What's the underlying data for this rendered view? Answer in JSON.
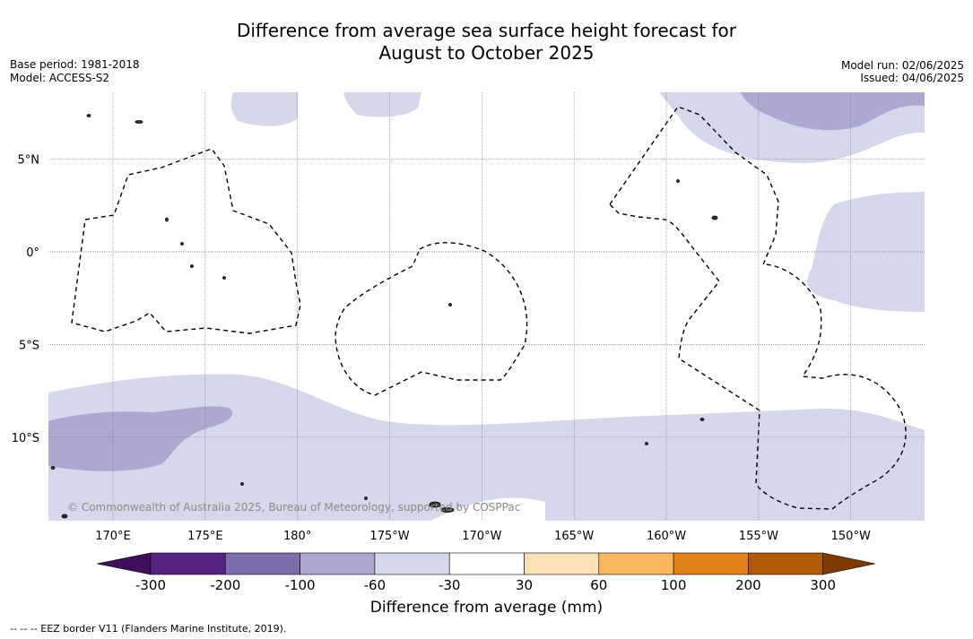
{
  "title_line1": "Difference from average sea surface height forecast for",
  "title_line2": "August to October 2025",
  "meta": {
    "base_period": "Base period: 1981-2018",
    "model": "Model: ACCESS-S2",
    "model_run": "Model run: 02/06/2025",
    "issued": "Issued: 04/06/2025"
  },
  "map": {
    "lon_ticks": [
      {
        "lon": 170,
        "label": "170°E"
      },
      {
        "lon": 175,
        "label": "175°E"
      },
      {
        "lon": 180,
        "label": "180°"
      },
      {
        "lon": 185,
        "label": "175°W"
      },
      {
        "lon": 190,
        "label": "170°W"
      },
      {
        "lon": 195,
        "label": "165°W"
      },
      {
        "lon": 200,
        "label": "160°W"
      },
      {
        "lon": 205,
        "label": "155°W"
      },
      {
        "lon": 210,
        "label": "150°W"
      }
    ],
    "lat_ticks": [
      {
        "lat": 5,
        "label": "5°N"
      },
      {
        "lat": 0,
        "label": "0°"
      },
      {
        "lat": -5,
        "label": "5°S"
      },
      {
        "lat": -10,
        "label": "10°S"
      }
    ],
    "lon_range": [
      166.5,
      214.0
    ],
    "lat_range": [
      -14.5,
      8.6
    ],
    "copyright": "© Commonwealth of Australia 2025, Bureau of Meteorology, supported by COSPPac"
  },
  "legend": {
    "title": "Difference from average (mm)",
    "tick_labels": [
      "-300",
      "-200",
      "-100",
      "-60",
      "-30",
      "30",
      "60",
      "100",
      "200",
      "300"
    ],
    "colors": [
      "#3f0f5e",
      "#562382",
      "#7d6fac",
      "#ada8d2",
      "#d6d7ea",
      "#ffffff",
      "#fde0b6",
      "#f9b65f",
      "#e1831a",
      "#b15b09",
      "#7e3a04"
    ]
  },
  "footnote": "--  --  -- EEZ border V11 (Flanders Marine Institute, 2019)."
}
